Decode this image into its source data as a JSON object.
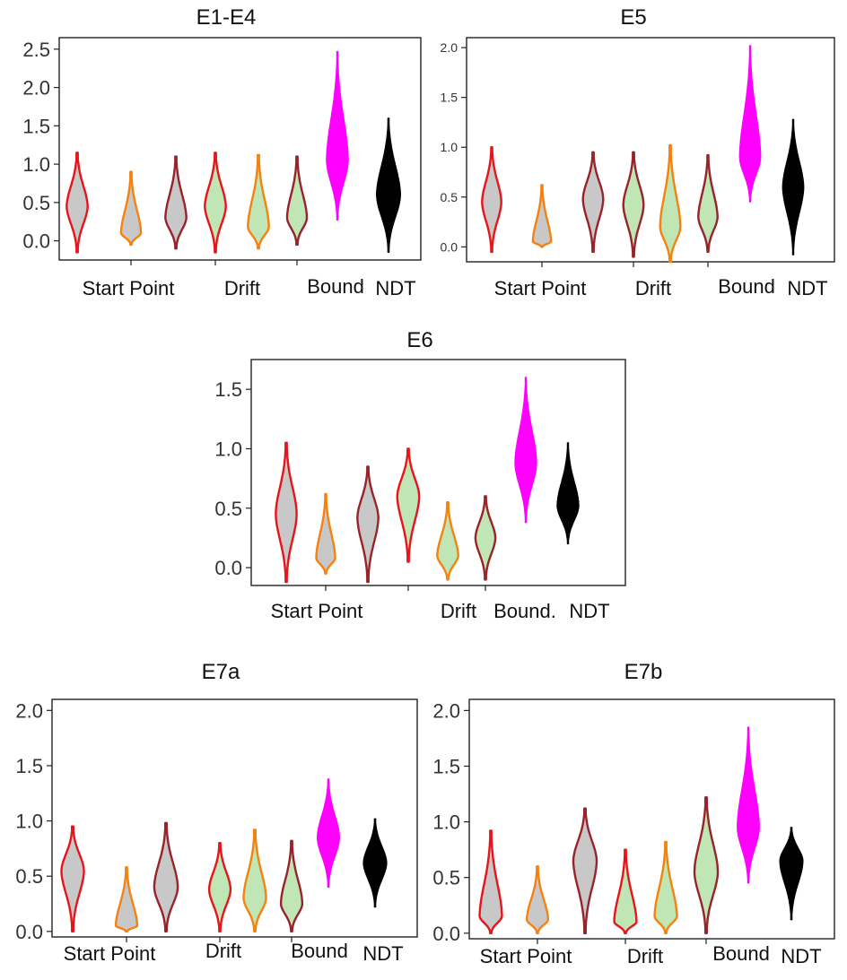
{
  "colors": {
    "red": "#e8141b",
    "orange": "#f5820f",
    "darkred": "#99232a",
    "gray_fill": "#c8c8c8",
    "green_fill": "#bfe6b4",
    "magenta": "#ff00ff",
    "black": "#000000"
  },
  "chart_data": [
    {
      "type": "violin",
      "title": "E1-E4",
      "ylim": [
        -0.25,
        2.65
      ],
      "yticks": [
        0.0,
        0.5,
        1.0,
        1.5,
        2.0,
        2.5
      ],
      "ytick_labels": [
        "0.0",
        "0.5",
        "1.0",
        "1.5",
        "2.0",
        "2.5"
      ],
      "groups": [
        "Start Point",
        "Drift",
        "Bound",
        "NDT"
      ],
      "violins": [
        {
          "name": "Start Point 1",
          "fill": "gray",
          "edge": "red",
          "ymin": -0.15,
          "ymax": 1.15,
          "center": 0.45,
          "width": 0.38
        },
        {
          "name": "Start Point 2",
          "fill": "gray",
          "edge": "orange",
          "ymin": -0.05,
          "ymax": 0.9,
          "center": 0.1,
          "width": 0.36
        },
        {
          "name": "Start Point 3",
          "fill": "gray",
          "edge": "darkred",
          "ymin": -0.1,
          "ymax": 1.1,
          "center": 0.3,
          "width": 0.38
        },
        {
          "name": "Drift 1",
          "fill": "green",
          "edge": "red",
          "ymin": -0.15,
          "ymax": 1.15,
          "center": 0.45,
          "width": 0.38
        },
        {
          "name": "Drift 2",
          "fill": "green",
          "edge": "orange",
          "ymin": -0.1,
          "ymax": 1.12,
          "center": 0.18,
          "width": 0.38
        },
        {
          "name": "Drift 3",
          "fill": "green",
          "edge": "darkred",
          "ymin": -0.05,
          "ymax": 1.1,
          "center": 0.3,
          "width": 0.36
        },
        {
          "name": "Bound",
          "fill": "magenta",
          "edge": "magenta",
          "ymin": 0.27,
          "ymax": 2.47,
          "center": 1.05,
          "width": 0.4
        },
        {
          "name": "NDT",
          "fill": "black",
          "edge": "black",
          "ymin": -0.15,
          "ymax": 1.6,
          "center": 0.6,
          "width": 0.44
        }
      ]
    },
    {
      "type": "violin",
      "title": "E5",
      "ylim": [
        -0.15,
        2.1
      ],
      "yticks": [
        0.0,
        0.5,
        1.0,
        1.5,
        2.0
      ],
      "ytick_labels": [
        "0.0",
        "0.5",
        "1.0",
        "1.5",
        "2.0"
      ],
      "groups": [
        "Start Point",
        "Drift",
        "Bound",
        "NDT"
      ],
      "violins": [
        {
          "name": "Start Point 1",
          "fill": "gray",
          "edge": "red",
          "ymin": -0.05,
          "ymax": 1.0,
          "center": 0.45,
          "width": 0.36
        },
        {
          "name": "Start Point 2",
          "fill": "gray",
          "edge": "orange",
          "ymin": 0.0,
          "ymax": 0.62,
          "center": 0.05,
          "width": 0.34
        },
        {
          "name": "Start Point 3",
          "fill": "gray",
          "edge": "darkred",
          "ymin": -0.05,
          "ymax": 0.95,
          "center": 0.48,
          "width": 0.38
        },
        {
          "name": "Drift 1",
          "fill": "green",
          "edge": "darkred",
          "ymin": -0.1,
          "ymax": 0.95,
          "center": 0.42,
          "width": 0.38
        },
        {
          "name": "Drift 2",
          "fill": "green",
          "edge": "orange",
          "ymin": -0.15,
          "ymax": 1.02,
          "center": 0.2,
          "width": 0.38
        },
        {
          "name": "Drift 3",
          "fill": "green",
          "edge": "darkred",
          "ymin": -0.05,
          "ymax": 0.92,
          "center": 0.3,
          "width": 0.36
        },
        {
          "name": "Bound",
          "fill": "magenta",
          "edge": "magenta",
          "ymin": 0.45,
          "ymax": 2.02,
          "center": 0.9,
          "width": 0.4
        },
        {
          "name": "NDT",
          "fill": "black",
          "edge": "black",
          "ymin": -0.08,
          "ymax": 1.28,
          "center": 0.6,
          "width": 0.4
        }
      ]
    },
    {
      "type": "violin",
      "title": "E6",
      "ylim": [
        -0.15,
        1.75
      ],
      "yticks": [
        0.0,
        0.5,
        1.0,
        1.5
      ],
      "ytick_labels": [
        "0.0",
        "0.5",
        "1.0",
        "1.5"
      ],
      "groups": [
        "Start Point",
        "Drift",
        "Bound.",
        "NDT"
      ],
      "violins": [
        {
          "name": "Start Point 1",
          "fill": "gray",
          "edge": "red",
          "ymin": -0.12,
          "ymax": 1.05,
          "center": 0.45,
          "width": 0.42
        },
        {
          "name": "Start Point 2",
          "fill": "gray",
          "edge": "orange",
          "ymin": -0.05,
          "ymax": 0.62,
          "center": 0.08,
          "width": 0.38
        },
        {
          "name": "Start Point 3",
          "fill": "gray",
          "edge": "darkred",
          "ymin": -0.12,
          "ymax": 0.85,
          "center": 0.42,
          "width": 0.42
        },
        {
          "name": "Drift 1",
          "fill": "green",
          "edge": "red",
          "ymin": 0.05,
          "ymax": 1.0,
          "center": 0.6,
          "width": 0.44
        },
        {
          "name": "Drift 2",
          "fill": "green",
          "edge": "orange",
          "ymin": -0.1,
          "ymax": 0.55,
          "center": 0.1,
          "width": 0.42
        },
        {
          "name": "Drift 3",
          "fill": "green",
          "edge": "darkred",
          "ymin": -0.1,
          "ymax": 0.6,
          "center": 0.25,
          "width": 0.4
        },
        {
          "name": "Bound",
          "fill": "magenta",
          "edge": "magenta",
          "ymin": 0.38,
          "ymax": 1.6,
          "center": 0.88,
          "width": 0.44
        },
        {
          "name": "NDT",
          "fill": "black",
          "edge": "black",
          "ymin": 0.2,
          "ymax": 1.05,
          "center": 0.52,
          "width": 0.44
        }
      ]
    },
    {
      "type": "violin",
      "title": "E7a",
      "ylim": [
        -0.05,
        2.1
      ],
      "yticks": [
        0.0,
        0.5,
        1.0,
        1.5,
        2.0
      ],
      "ytick_labels": [
        "0.0",
        "0.5",
        "1.0",
        "1.5",
        "2.0"
      ],
      "groups": [
        "Start Point",
        "Drift",
        "Bound",
        "NDT"
      ],
      "violins": [
        {
          "name": "Start Point 1",
          "fill": "gray",
          "edge": "red",
          "ymin": 0.0,
          "ymax": 0.95,
          "center": 0.55,
          "width": 0.42
        },
        {
          "name": "Start Point 2",
          "fill": "gray",
          "edge": "orange",
          "ymin": 0.0,
          "ymax": 0.58,
          "center": 0.05,
          "width": 0.4
        },
        {
          "name": "Start Point 3",
          "fill": "gray",
          "edge": "darkred",
          "ymin": 0.0,
          "ymax": 0.98,
          "center": 0.4,
          "width": 0.44
        },
        {
          "name": "Drift 1",
          "fill": "green",
          "edge": "red",
          "ymin": 0.0,
          "ymax": 0.8,
          "center": 0.38,
          "width": 0.4
        },
        {
          "name": "Drift 2",
          "fill": "green",
          "edge": "orange",
          "ymin": 0.0,
          "ymax": 0.92,
          "center": 0.3,
          "width": 0.42
        },
        {
          "name": "Drift 3",
          "fill": "green",
          "edge": "darkred",
          "ymin": 0.0,
          "ymax": 0.82,
          "center": 0.25,
          "width": 0.4
        },
        {
          "name": "Bound",
          "fill": "magenta",
          "edge": "magenta",
          "ymin": 0.4,
          "ymax": 1.38,
          "center": 0.85,
          "width": 0.42
        },
        {
          "name": "NDT",
          "fill": "black",
          "edge": "black",
          "ymin": 0.22,
          "ymax": 1.02,
          "center": 0.62,
          "width": 0.44
        }
      ]
    },
    {
      "type": "violin",
      "title": "E7b",
      "ylim": [
        -0.05,
        2.1
      ],
      "yticks": [
        0.0,
        0.5,
        1.0,
        1.5,
        2.0
      ],
      "ytick_labels": [
        "0.0",
        "0.5",
        "1.0",
        "1.5",
        "2.0"
      ],
      "groups": [
        "Start Point",
        "Drift",
        "Bound",
        "NDT"
      ],
      "violins": [
        {
          "name": "Start Point 1",
          "fill": "gray",
          "edge": "red",
          "ymin": 0.0,
          "ymax": 0.92,
          "center": 0.15,
          "width": 0.42
        },
        {
          "name": "Start Point 2",
          "fill": "gray",
          "edge": "orange",
          "ymin": 0.0,
          "ymax": 0.6,
          "center": 0.12,
          "width": 0.4
        },
        {
          "name": "Start Point 3",
          "fill": "gray",
          "edge": "darkred",
          "ymin": 0.0,
          "ymax": 1.12,
          "center": 0.65,
          "width": 0.44
        },
        {
          "name": "Drift 1",
          "fill": "green",
          "edge": "red",
          "ymin": 0.0,
          "ymax": 0.75,
          "center": 0.1,
          "width": 0.42
        },
        {
          "name": "Drift 2",
          "fill": "green",
          "edge": "orange",
          "ymin": 0.0,
          "ymax": 0.82,
          "center": 0.15,
          "width": 0.42
        },
        {
          "name": "Drift 3",
          "fill": "green",
          "edge": "darkred",
          "ymin": 0.0,
          "ymax": 1.22,
          "center": 0.55,
          "width": 0.44
        },
        {
          "name": "Bound",
          "fill": "magenta",
          "edge": "magenta",
          "ymin": 0.45,
          "ymax": 1.85,
          "center": 0.95,
          "width": 0.42
        },
        {
          "name": "NDT",
          "fill": "black",
          "edge": "black",
          "ymin": 0.12,
          "ymax": 0.95,
          "center": 0.65,
          "width": 0.44
        }
      ]
    }
  ]
}
